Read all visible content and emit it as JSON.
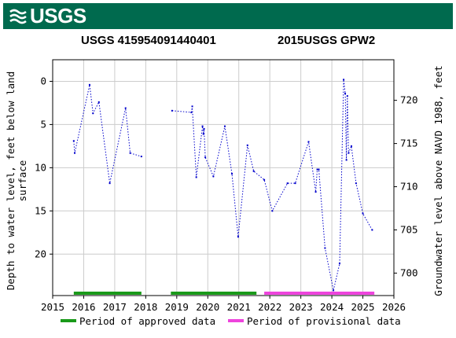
{
  "banner": {
    "logo_text": "USGS",
    "color": "#006a4e"
  },
  "title": {
    "site": "USGS 415954091440401",
    "network": "2015USGS GPW2"
  },
  "chart_data": {
    "type": "line",
    "xlabel": "",
    "ylabel_left": "Depth to water level, feet below land surface",
    "ylabel_left_lines": [
      "Depth to water level, feet below land",
      "surface"
    ],
    "ylabel_right": "Groundwater level above NAVD 1988, feet",
    "xlim": [
      2015,
      2026
    ],
    "ylim_left": [
      -2.5,
      24.8
    ],
    "left_axis_inverted": true,
    "right_axis_offset": 722.2,
    "x_ticks": [
      2015,
      2016,
      2017,
      2018,
      2019,
      2020,
      2021,
      2022,
      2023,
      2024,
      2025,
      2026
    ],
    "y_ticks_left": [
      0,
      5,
      10,
      15,
      20
    ],
    "y_ticks_right": [
      700,
      705,
      710,
      715,
      720
    ],
    "grid": true,
    "line_style": "dotted",
    "line_color": "#0000cc",
    "series": [
      {
        "points": [
          [
            2015.68,
            6.9
          ],
          [
            2015.71,
            8.3
          ],
          [
            2016.19,
            0.4
          ],
          [
            2016.3,
            3.7
          ],
          [
            2016.49,
            2.4
          ],
          [
            2016.84,
            11.8
          ],
          [
            2017.35,
            3.1
          ],
          [
            2017.5,
            8.3
          ],
          [
            2017.86,
            8.7
          ]
        ]
      },
      {
        "points": [
          [
            2018.85,
            3.4
          ],
          [
            2019.47,
            3.6
          ],
          [
            2019.5,
            2.9
          ],
          [
            2019.63,
            11.1
          ],
          [
            2019.83,
            5.2
          ],
          [
            2019.86,
            6.1
          ],
          [
            2019.88,
            5.5
          ],
          [
            2019.92,
            8.8
          ],
          [
            2020.18,
            11.0
          ],
          [
            2020.55,
            5.2
          ],
          [
            2020.78,
            10.7
          ],
          [
            2020.98,
            18.0
          ],
          [
            2021.28,
            7.4
          ],
          [
            2021.48,
            10.4
          ],
          [
            2021.82,
            11.4
          ],
          [
            2022.08,
            15.0
          ],
          [
            2022.57,
            11.8
          ],
          [
            2022.82,
            11.8
          ],
          [
            2023.25,
            7.0
          ],
          [
            2023.48,
            12.8
          ],
          [
            2023.53,
            10.2
          ],
          [
            2023.58,
            10.2
          ],
          [
            2023.78,
            19.3
          ],
          [
            2024.05,
            24.2
          ],
          [
            2024.25,
            21.1
          ],
          [
            2024.38,
            -0.2
          ],
          [
            2024.43,
            1.4
          ],
          [
            2024.47,
            9.1
          ],
          [
            2024.5,
            1.7
          ],
          [
            2024.54,
            8.3
          ],
          [
            2024.63,
            7.5
          ],
          [
            2024.78,
            11.8
          ],
          [
            2025.0,
            15.3
          ],
          [
            2025.3,
            17.2
          ]
        ]
      }
    ],
    "periods": [
      {
        "label": "Period of approved data",
        "color": "#1a9a1a",
        "start": 2015.68,
        "end": 2017.86
      },
      {
        "label": "Period of approved data",
        "color": "#1a9a1a",
        "start": 2018.81,
        "end": 2021.57
      },
      {
        "label": "Period of provisional data",
        "color": "#ee44dd",
        "start": 2021.82,
        "end": 2025.37
      }
    ],
    "legend": [
      {
        "label": "Period of approved data",
        "color": "#1a9a1a"
      },
      {
        "label": "Period of provisional data",
        "color": "#ee44dd"
      }
    ],
    "legend_position": "bottom"
  }
}
